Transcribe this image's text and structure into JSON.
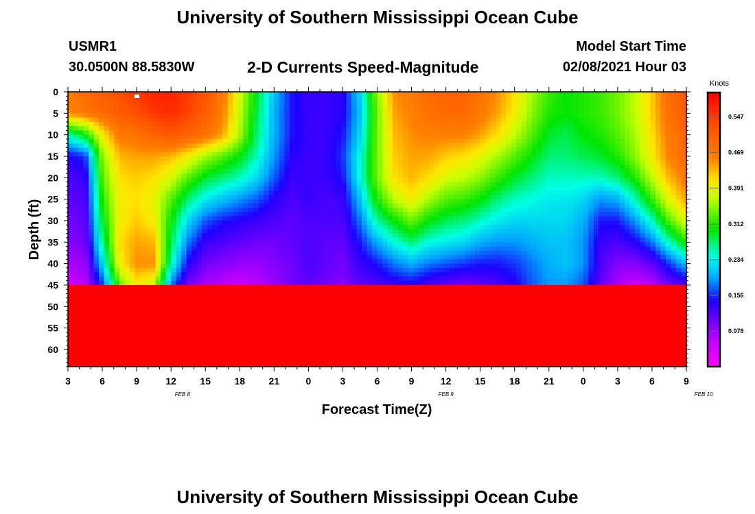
{
  "header": {
    "title_top": "University of Southern Mississippi Ocean Cube",
    "station": "USMR1",
    "coords": "30.0500N 88.5830W",
    "subtitle": "2-D Currents Speed-Magnitude",
    "model_start_label": "Model Start Time",
    "model_start_value": "02/08/2021 Hour 03"
  },
  "footer": {
    "title_bottom": "University of Southern Mississippi Ocean Cube"
  },
  "colors": {
    "frame": "#000000"
  },
  "chart_data": {
    "type": "heatmap",
    "title": "2-D Currents Speed-Magnitude",
    "xlabel": "Forecast Time(Z)",
    "ylabel": "Depth (ft)",
    "x_range_hours": [
      0,
      54
    ],
    "y_range_ft": [
      0,
      64
    ],
    "y_ticks": [
      0,
      5,
      10,
      15,
      20,
      25,
      30,
      35,
      40,
      45,
      50,
      55,
      60
    ],
    "x_ticks": [
      {
        "hour": 0,
        "label": "3"
      },
      {
        "hour": 3,
        "label": "6"
      },
      {
        "hour": 6,
        "label": "9"
      },
      {
        "hour": 9,
        "label": "12"
      },
      {
        "hour": 12,
        "label": "15"
      },
      {
        "hour": 15,
        "label": "18"
      },
      {
        "hour": 18,
        "label": "21"
      },
      {
        "hour": 21,
        "label": "0"
      },
      {
        "hour": 24,
        "label": "3"
      },
      {
        "hour": 27,
        "label": "6"
      },
      {
        "hour": 30,
        "label": "9"
      },
      {
        "hour": 33,
        "label": "12"
      },
      {
        "hour": 36,
        "label": "15"
      },
      {
        "hour": 39,
        "label": "18"
      },
      {
        "hour": 42,
        "label": "21"
      },
      {
        "hour": 45,
        "label": "0"
      },
      {
        "hour": 48,
        "label": "3"
      },
      {
        "hour": 51,
        "label": "6"
      },
      {
        "hour": 54,
        "label": "9"
      }
    ],
    "date_labels": [
      {
        "hour": 10,
        "label": "FEB 8"
      },
      {
        "hour": 33,
        "label": "FEB 9"
      },
      {
        "hour": 55.5,
        "label": "FEB 10"
      }
    ],
    "colorbar": {
      "title": "Knots",
      "min": 0,
      "max": 0.6,
      "ticks": [
        "0.547",
        "0.469",
        "0.391",
        "0.312",
        "0.234",
        "0.156",
        "0.078"
      ],
      "tick_values": [
        0.547,
        0.469,
        0.391,
        0.312,
        0.234,
        0.156,
        0.078
      ]
    },
    "depths_ft": [
      0,
      5,
      10,
      15,
      20,
      25,
      30,
      35,
      40,
      45,
      50,
      55,
      60,
      64
    ],
    "time_hours": [
      0,
      1.5,
      3,
      4.5,
      6,
      7.5,
      9,
      10.5,
      12,
      13.5,
      15,
      16.5,
      18,
      19.5,
      21,
      22.5,
      24,
      25.5,
      27,
      28.5,
      30,
      31.5,
      33,
      34.5,
      36,
      37.5,
      39,
      40.5,
      42,
      43.5,
      45,
      46.5,
      48,
      49.5,
      51,
      52.5,
      54
    ],
    "speed_knots": [
      [
        0.47,
        0.45,
        0.25,
        0.14,
        0.12,
        0.11,
        0.1,
        0.09,
        0.07,
        0.05
      ],
      [
        0.49,
        0.47,
        0.3,
        0.16,
        0.13,
        0.12,
        0.11,
        0.1,
        0.08,
        0.06
      ],
      [
        0.51,
        0.49,
        0.4,
        0.35,
        0.33,
        0.31,
        0.29,
        0.26,
        0.22,
        0.16
      ],
      [
        0.53,
        0.51,
        0.47,
        0.43,
        0.41,
        0.4,
        0.4,
        0.41,
        0.4,
        0.33
      ],
      [
        0.55,
        0.53,
        0.48,
        0.44,
        0.42,
        0.41,
        0.42,
        0.44,
        0.45,
        0.4
      ],
      [
        0.57,
        0.55,
        0.5,
        0.44,
        0.41,
        0.39,
        0.4,
        0.43,
        0.45,
        0.37
      ],
      [
        0.57,
        0.56,
        0.52,
        0.43,
        0.38,
        0.33,
        0.3,
        0.28,
        0.25,
        0.18
      ],
      [
        0.55,
        0.54,
        0.5,
        0.4,
        0.33,
        0.27,
        0.22,
        0.18,
        0.14,
        0.1
      ],
      [
        0.52,
        0.51,
        0.48,
        0.36,
        0.29,
        0.23,
        0.17,
        0.13,
        0.1,
        0.07
      ],
      [
        0.47,
        0.46,
        0.44,
        0.33,
        0.27,
        0.21,
        0.15,
        0.12,
        0.09,
        0.06
      ],
      [
        0.38,
        0.37,
        0.36,
        0.3,
        0.25,
        0.19,
        0.14,
        0.11,
        0.08,
        0.05
      ],
      [
        0.29,
        0.28,
        0.27,
        0.25,
        0.22,
        0.17,
        0.13,
        0.1,
        0.08,
        0.06
      ],
      [
        0.21,
        0.2,
        0.2,
        0.19,
        0.17,
        0.14,
        0.12,
        0.1,
        0.09,
        0.08
      ],
      [
        0.15,
        0.15,
        0.15,
        0.14,
        0.13,
        0.12,
        0.11,
        0.11,
        0.1,
        0.1
      ],
      [
        0.13,
        0.13,
        0.13,
        0.13,
        0.13,
        0.13,
        0.12,
        0.12,
        0.12,
        0.11
      ],
      [
        0.13,
        0.13,
        0.13,
        0.13,
        0.13,
        0.12,
        0.12,
        0.11,
        0.11,
        0.1
      ],
      [
        0.14,
        0.14,
        0.15,
        0.16,
        0.15,
        0.13,
        0.12,
        0.11,
        0.1,
        0.09
      ],
      [
        0.22,
        0.21,
        0.22,
        0.24,
        0.24,
        0.21,
        0.18,
        0.15,
        0.13,
        0.11
      ],
      [
        0.35,
        0.34,
        0.34,
        0.34,
        0.34,
        0.31,
        0.26,
        0.2,
        0.15,
        0.12
      ],
      [
        0.45,
        0.44,
        0.43,
        0.42,
        0.41,
        0.37,
        0.3,
        0.24,
        0.18,
        0.13
      ],
      [
        0.47,
        0.46,
        0.45,
        0.44,
        0.43,
        0.4,
        0.34,
        0.27,
        0.2,
        0.14
      ],
      [
        0.49,
        0.48,
        0.46,
        0.44,
        0.41,
        0.36,
        0.3,
        0.24,
        0.18,
        0.12
      ],
      [
        0.5,
        0.49,
        0.46,
        0.42,
        0.38,
        0.33,
        0.28,
        0.23,
        0.17,
        0.11
      ],
      [
        0.5,
        0.49,
        0.46,
        0.41,
        0.37,
        0.32,
        0.27,
        0.22,
        0.16,
        0.1
      ],
      [
        0.48,
        0.47,
        0.44,
        0.39,
        0.35,
        0.3,
        0.25,
        0.2,
        0.15,
        0.11
      ],
      [
        0.45,
        0.44,
        0.41,
        0.36,
        0.32,
        0.27,
        0.23,
        0.19,
        0.15,
        0.12
      ],
      [
        0.41,
        0.4,
        0.37,
        0.33,
        0.29,
        0.25,
        0.22,
        0.19,
        0.16,
        0.14
      ],
      [
        0.36,
        0.35,
        0.33,
        0.3,
        0.27,
        0.24,
        0.22,
        0.2,
        0.18,
        0.17
      ],
      [
        0.32,
        0.31,
        0.29,
        0.27,
        0.25,
        0.23,
        0.22,
        0.21,
        0.2,
        0.19
      ],
      [
        0.3,
        0.3,
        0.28,
        0.27,
        0.25,
        0.23,
        0.22,
        0.21,
        0.21,
        0.19
      ],
      [
        0.31,
        0.31,
        0.3,
        0.28,
        0.25,
        0.22,
        0.2,
        0.19,
        0.19,
        0.17
      ],
      [
        0.32,
        0.32,
        0.31,
        0.29,
        0.25,
        0.19,
        0.15,
        0.13,
        0.12,
        0.11
      ],
      [
        0.34,
        0.34,
        0.33,
        0.31,
        0.27,
        0.2,
        0.15,
        0.12,
        0.09,
        0.07
      ],
      [
        0.37,
        0.37,
        0.36,
        0.35,
        0.31,
        0.25,
        0.19,
        0.14,
        0.09,
        0.05
      ],
      [
        0.42,
        0.42,
        0.41,
        0.4,
        0.37,
        0.32,
        0.25,
        0.18,
        0.11,
        0.06
      ],
      [
        0.49,
        0.48,
        0.47,
        0.46,
        0.43,
        0.39,
        0.33,
        0.25,
        0.16,
        0.1
      ],
      [
        0.52,
        0.51,
        0.5,
        0.49,
        0.47,
        0.44,
        0.39,
        0.31,
        0.21,
        0.12
      ]
    ]
  }
}
